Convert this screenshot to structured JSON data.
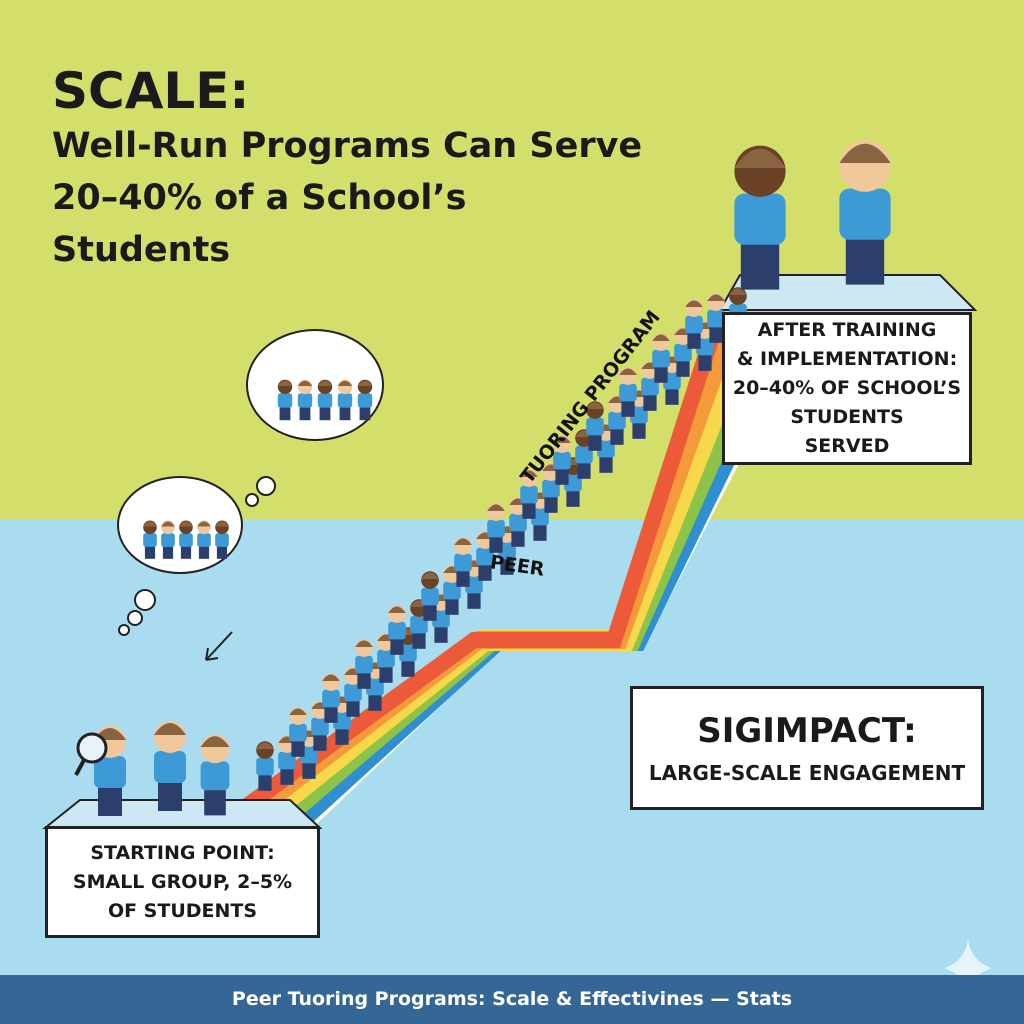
{
  "title": "SCALE:",
  "subtitle": "Well-Run Programs Can Serve 20–40% of a School’s Students",
  "ribbon": {
    "word1": "PEER",
    "word2": "TUORING PROGRAM"
  },
  "after_box": {
    "lines": [
      "AFTER TRAINING",
      "& IMPLEMENTATION:",
      "20–40% OF SCHOOL’S",
      "STUDENTS",
      "SERVED"
    ]
  },
  "start_box": {
    "lines": [
      "STARTING POINT:",
      "SMALL GROUP, 2–5%",
      "OF STUDENTS"
    ]
  },
  "impact_box": {
    "heading": "SIGIMPACT:",
    "text": "LARGE-SCALE ENGAGEMENT"
  },
  "footer": "Peer Tuoring Programs: Scale & Effectivines — Stats",
  "colors": {
    "top_bg": "#d3df6a",
    "bottom_bg": "#a9dcef",
    "footer_bg": "#356796",
    "shirt": "#3d9ad6"
  },
  "icons": [
    "thought-cloud-icon",
    "student-figure-icon",
    "magnifier-icon",
    "arrow-icon",
    "sparkle-icon"
  ]
}
